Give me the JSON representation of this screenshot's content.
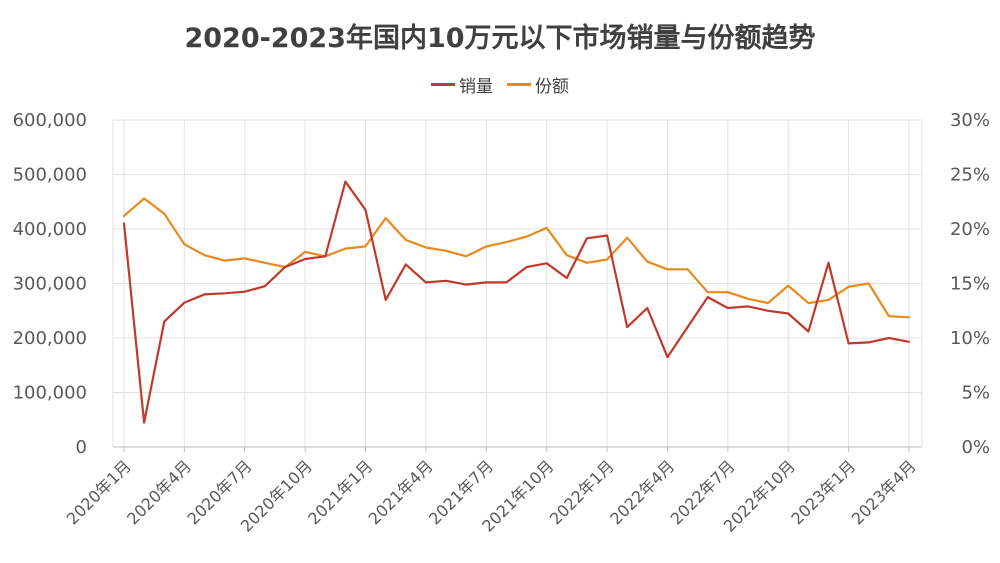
{
  "chart_data": {
    "type": "line",
    "title": "2020-2023年国内10万元以下市场销量与份额趋势",
    "legend_position": "top-center",
    "grid": true,
    "x": [
      "2020年1月",
      "2020年2月",
      "2020年3月",
      "2020年4月",
      "2020年5月",
      "2020年6月",
      "2020年7月",
      "2020年8月",
      "2020年9月",
      "2020年10月",
      "2020年11月",
      "2020年12月",
      "2021年1月",
      "2021年2月",
      "2021年3月",
      "2021年4月",
      "2021年5月",
      "2021年6月",
      "2021年7月",
      "2021年8月",
      "2021年9月",
      "2021年10月",
      "2021年11月",
      "2021年12月",
      "2022年1月",
      "2022年2月",
      "2022年3月",
      "2022年4月",
      "2022年5月",
      "2022年6月",
      "2022年7月",
      "2022年8月",
      "2022年9月",
      "2022年10月",
      "2022年11月",
      "2022年12月",
      "2023年1月",
      "2023年2月",
      "2023年3月",
      "2023年4月"
    ],
    "x_tick_labels": [
      "2020年1月",
      "2020年4月",
      "2020年7月",
      "2020年10月",
      "2021年1月",
      "2021年4月",
      "2021年7月",
      "2021年10月",
      "2022年1月",
      "2022年4月",
      "2022年7月",
      "2022年10月",
      "2023年1月",
      "2023年4月"
    ],
    "y_left": {
      "lim": [
        0,
        600000
      ],
      "ticks": [
        "0",
        "100,000",
        "200,000",
        "300,000",
        "400,000",
        "500,000",
        "600,000"
      ]
    },
    "y_right": {
      "lim": [
        0,
        30
      ],
      "ticks": [
        "0%",
        "5%",
        "10%",
        "15%",
        "20%",
        "25%",
        "30%"
      ]
    },
    "series": [
      {
        "name": "销量",
        "axis": "left",
        "color": "#c0392b",
        "values": [
          410000,
          45000,
          230000,
          265000,
          280000,
          282000,
          285000,
          295000,
          330000,
          345000,
          350000,
          487000,
          435000,
          270000,
          335000,
          302000,
          305000,
          298000,
          302000,
          302000,
          330000,
          337000,
          310000,
          383000,
          388000,
          220000,
          255000,
          165000,
          220000,
          275000,
          255000,
          258000,
          250000,
          245000,
          212000,
          338000,
          190000,
          192000,
          200000,
          193000
        ]
      },
      {
        "name": "份额",
        "axis": "right",
        "color": "#e9891d",
        "values": [
          21.2,
          22.8,
          21.4,
          18.6,
          17.6,
          17.1,
          17.3,
          16.9,
          16.5,
          17.9,
          17.5,
          18.2,
          18.4,
          21.0,
          19.0,
          18.3,
          18.0,
          17.5,
          18.4,
          18.8,
          19.3,
          20.1,
          17.6,
          16.9,
          17.2,
          19.2,
          17.0,
          16.3,
          16.3,
          14.2,
          14.2,
          13.6,
          13.2,
          14.8,
          13.2,
          13.5,
          14.7,
          15.0,
          12.0,
          11.9
        ]
      }
    ]
  }
}
